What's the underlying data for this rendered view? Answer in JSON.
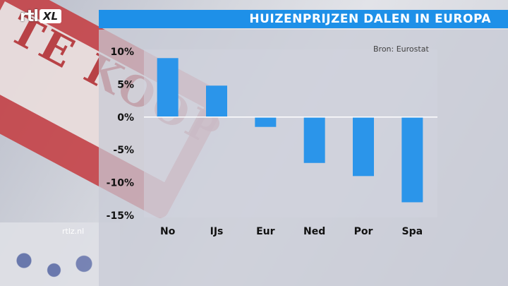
{
  "header": {
    "logo_rtl": "rtl",
    "logo_xl": "XL",
    "title": "HUIZENPRIJZEN DALEN IN EUROPA"
  },
  "source_label": "Bron: Eurostat",
  "watermark": "rtlz.nl",
  "colors": {
    "title_bar": "#1e90e8",
    "bar": "#2b95ea",
    "zero_line": "#ffffff"
  },
  "chart_data": {
    "type": "bar",
    "categories": [
      "No",
      "IJs",
      "Eur",
      "Ned",
      "Por",
      "Spa"
    ],
    "values": [
      9,
      4.8,
      -1.5,
      -7,
      -9,
      -13
    ],
    "ylim": [
      -15,
      10
    ],
    "yticks": [
      10,
      5,
      0,
      -5,
      -10,
      -15
    ],
    "ytick_labels": [
      "10%",
      "5%",
      "0%",
      "-5%",
      "-10%",
      "-15%"
    ],
    "title": "HUIZENPRIJZEN DALEN IN EUROPA",
    "source": "Bron: Eurostat",
    "grid": false,
    "legend": "none"
  }
}
